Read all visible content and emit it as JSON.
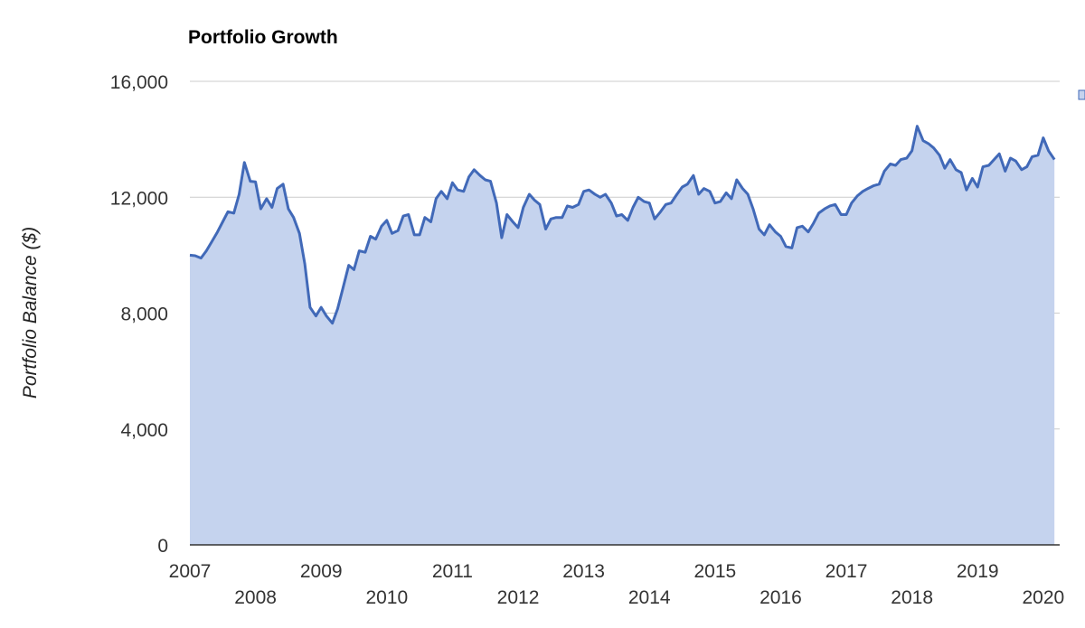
{
  "chart_data": {
    "type": "area",
    "title": "Portfolio Growth",
    "xlabel": "",
    "ylabel": "Portfolio Balance ($)",
    "xlim": [
      2007.0,
      2020.25
    ],
    "ylim": [
      0,
      16000
    ],
    "yticks": [
      {
        "value": 0,
        "label": "0"
      },
      {
        "value": 4000,
        "label": "4,000"
      },
      {
        "value": 8000,
        "label": "8,000"
      },
      {
        "value": 12000,
        "label": "12,000"
      },
      {
        "value": 16000,
        "label": "16,000"
      }
    ],
    "xticks": [
      {
        "value": 2007,
        "label": "2007"
      },
      {
        "value": 2008,
        "label": "2008"
      },
      {
        "value": 2009,
        "label": "2009"
      },
      {
        "value": 2010,
        "label": "2010"
      },
      {
        "value": 2011,
        "label": "2011"
      },
      {
        "value": 2012,
        "label": "2012"
      },
      {
        "value": 2013,
        "label": "2013"
      },
      {
        "value": 2014,
        "label": "2014"
      },
      {
        "value": 2015,
        "label": "2015"
      },
      {
        "value": 2016,
        "label": "2016"
      },
      {
        "value": 2017,
        "label": "2017"
      },
      {
        "value": 2018,
        "label": "2018"
      },
      {
        "value": 2019,
        "label": "2019"
      },
      {
        "value": 2020,
        "label": "2020"
      }
    ],
    "grid": true,
    "legend": "right",
    "colors": {
      "line": "#4169b8",
      "fill": "#c5d3ee",
      "grid": "#cccccc",
      "axis": "#333333"
    },
    "series": [
      {
        "x": [
          2007.0,
          2007.08,
          2007.17,
          2007.25,
          2007.33,
          2007.42,
          2007.5,
          2007.58,
          2007.67,
          2007.75,
          2007.83,
          2007.92,
          2008.0,
          2008.08,
          2008.17,
          2008.25,
          2008.33,
          2008.42,
          2008.5,
          2008.58,
          2008.67,
          2008.75,
          2008.83,
          2008.92,
          2009.0,
          2009.08,
          2009.17,
          2009.25,
          2009.33,
          2009.42,
          2009.5,
          2009.58,
          2009.67,
          2009.75,
          2009.83,
          2009.92,
          2010.0,
          2010.08,
          2010.17,
          2010.25,
          2010.33,
          2010.42,
          2010.5,
          2010.58,
          2010.67,
          2010.75,
          2010.83,
          2010.92,
          2011.0,
          2011.08,
          2011.17,
          2011.25,
          2011.33,
          2011.42,
          2011.5,
          2011.58,
          2011.67,
          2011.75,
          2011.83,
          2011.92,
          2012.0,
          2012.08,
          2012.17,
          2012.25,
          2012.33,
          2012.42,
          2012.5,
          2012.58,
          2012.67,
          2012.75,
          2012.83,
          2012.92,
          2013.0,
          2013.08,
          2013.17,
          2013.25,
          2013.33,
          2013.42,
          2013.5,
          2013.58,
          2013.67,
          2013.75,
          2013.83,
          2013.92,
          2014.0,
          2014.08,
          2014.17,
          2014.25,
          2014.33,
          2014.42,
          2014.5,
          2014.58,
          2014.67,
          2014.75,
          2014.83,
          2014.92,
          2015.0,
          2015.08,
          2015.17,
          2015.25,
          2015.33,
          2015.42,
          2015.5,
          2015.58,
          2015.67,
          2015.75,
          2015.83,
          2015.92,
          2016.0,
          2016.08,
          2016.17,
          2016.25,
          2016.33,
          2016.42,
          2016.5,
          2016.58,
          2016.67,
          2016.75,
          2016.83,
          2016.92,
          2017.0,
          2017.08,
          2017.17,
          2017.25,
          2017.33,
          2017.42,
          2017.5,
          2017.58,
          2017.67,
          2017.75,
          2017.83,
          2017.92,
          2018.0,
          2018.08,
          2018.17,
          2018.25,
          2018.33,
          2018.42,
          2018.5,
          2018.58,
          2018.67,
          2018.75,
          2018.83,
          2018.92,
          2019.0,
          2019.08,
          2019.17,
          2019.25,
          2019.33,
          2019.42,
          2019.5,
          2019.58,
          2019.67,
          2019.75,
          2019.83,
          2019.92,
          2020.0,
          2020.08,
          2020.17
        ],
        "y": [
          10000,
          9980,
          9900,
          10150,
          10450,
          10800,
          11150,
          11500,
          11450,
          12100,
          13200,
          12550,
          12530,
          11600,
          11950,
          11650,
          12300,
          12450,
          11600,
          11300,
          10750,
          9700,
          8200,
          7900,
          8200,
          7900,
          7650,
          8150,
          8850,
          9650,
          9500,
          10150,
          10100,
          10650,
          10550,
          11000,
          11200,
          10750,
          10850,
          11350,
          11400,
          10700,
          10700,
          11300,
          11150,
          11950,
          12200,
          11950,
          12500,
          12250,
          12200,
          12700,
          12950,
          12750,
          12600,
          12550,
          11800,
          10600,
          11400,
          11150,
          10950,
          11650,
          12100,
          11900,
          11750,
          10900,
          11250,
          11300,
          11300,
          11700,
          11650,
          11750,
          12200,
          12250,
          12100,
          12000,
          12100,
          11800,
          11350,
          11400,
          11200,
          11650,
          12000,
          11850,
          11800,
          11250,
          11500,
          11750,
          11800,
          12100,
          12350,
          12450,
          12750,
          12100,
          12300,
          12200,
          11800,
          11850,
          12150,
          11950,
          12600,
          12300,
          12100,
          11600,
          10900,
          10700,
          11050,
          10800,
          10650,
          10300,
          10250,
          10950,
          11000,
          10800,
          11100,
          11450,
          11600,
          11700,
          11750,
          11400,
          11400,
          11800,
          12050,
          12200,
          12300,
          12400,
          12450,
          12900,
          13150,
          13100,
          13300,
          13350,
          13600,
          14450,
          13950,
          13850,
          13700,
          13450,
          13000,
          13300,
          12950,
          12850,
          12250,
          12650,
          12350,
          13050,
          13100,
          13300,
          13500,
          12900,
          13350,
          13250,
          12950,
          13050,
          13400,
          13450,
          14050,
          13600,
          13300
        ]
      }
    ]
  }
}
